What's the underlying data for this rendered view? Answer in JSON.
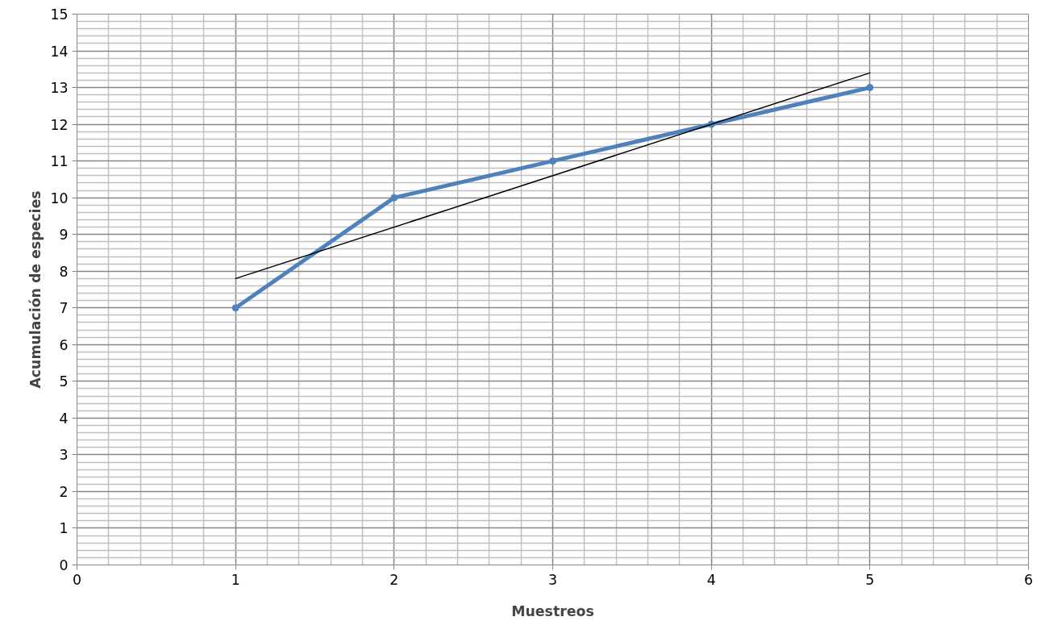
{
  "chart_data": {
    "type": "line",
    "xlabel": "Muestreos",
    "ylabel": "Acumulación de especies",
    "xlim": [
      0,
      6
    ],
    "xticks": [
      0,
      1,
      2,
      3,
      4,
      5,
      6
    ],
    "ylim": [
      0,
      15
    ],
    "yticks": [
      0,
      1,
      2,
      3,
      4,
      5,
      6,
      7,
      8,
      9,
      10,
      11,
      12,
      13,
      14,
      15
    ],
    "grid": true,
    "series": [
      {
        "x": [
          1,
          2,
          3,
          4,
          5
        ],
        "values": [
          7,
          10,
          11,
          12,
          13
        ],
        "color": "#4f81bd",
        "marker": "circle"
      },
      {
        "x": [
          1,
          5
        ],
        "values": [
          7.8,
          13.4
        ],
        "color": "#000000",
        "marker": "none"
      }
    ]
  }
}
